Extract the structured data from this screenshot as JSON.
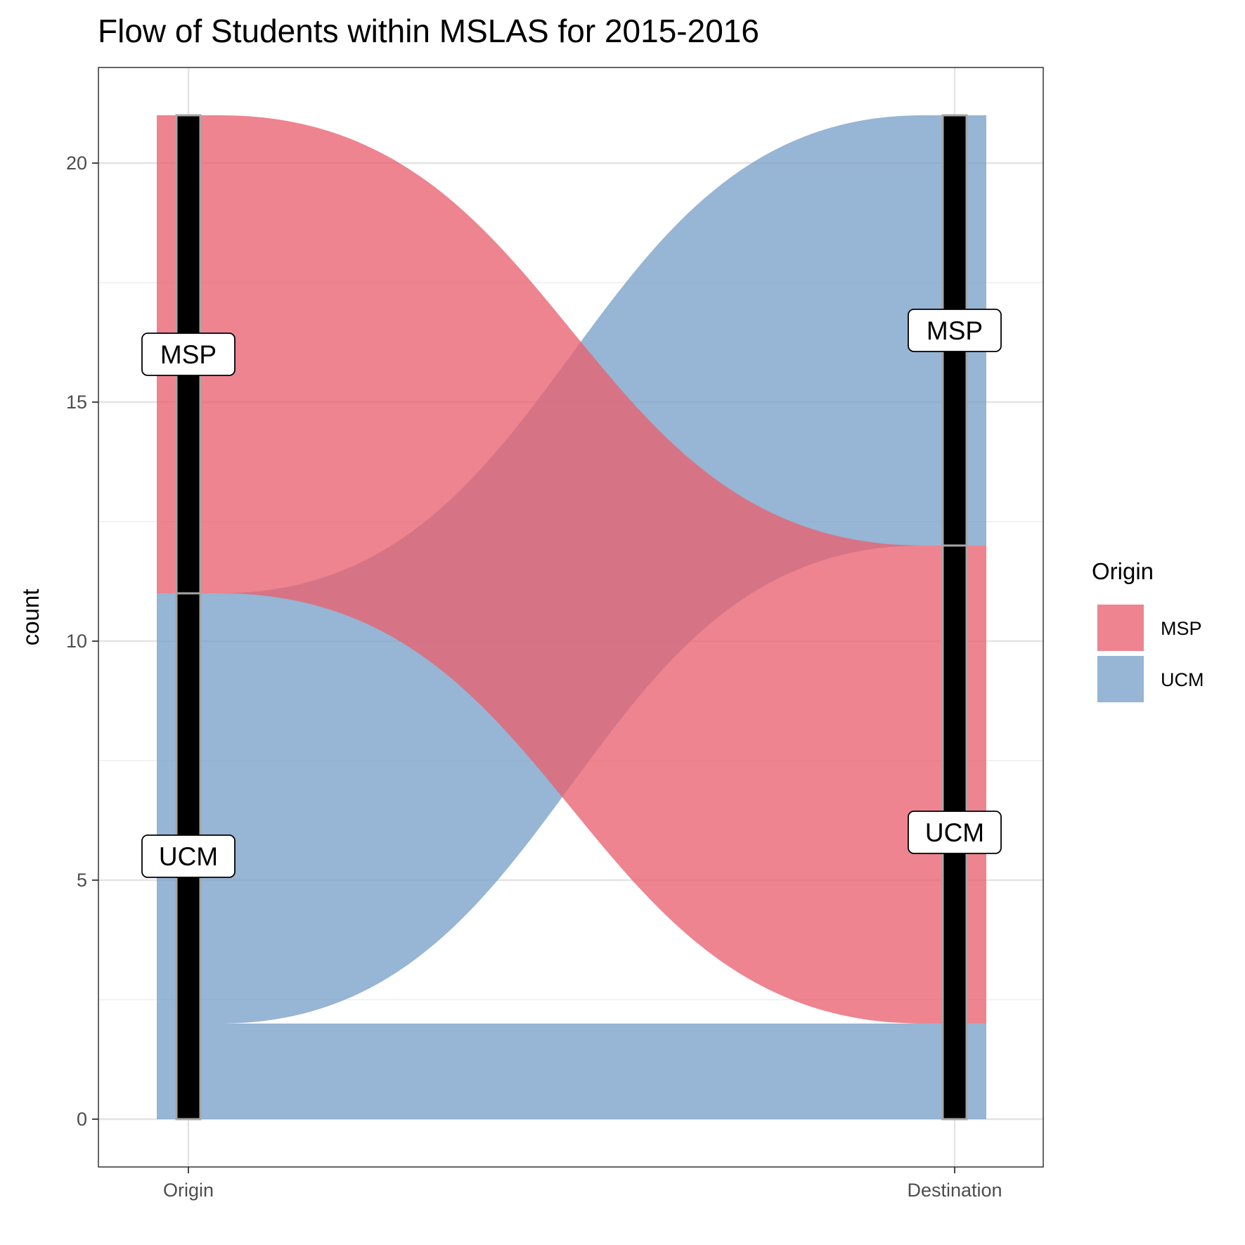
{
  "chart_data": {
    "type": "alluvial",
    "title": "Flow of Students within MSLAS for 2015-2016",
    "xlabel": "",
    "ylabel": "count",
    "axes": [
      "Origin",
      "Destination"
    ],
    "ylim": [
      -1,
      22
    ],
    "yticks": [
      0,
      5,
      10,
      15,
      20
    ],
    "grid": true,
    "legend": {
      "title": "Origin",
      "position": "right",
      "entries": [
        {
          "name": "MSP",
          "color": "#e8616f"
        },
        {
          "name": "UCM",
          "color": "#7aa0c8"
        }
      ]
    },
    "strata": {
      "Origin": [
        {
          "label": "UCM",
          "count": 11
        },
        {
          "label": "MSP",
          "count": 10
        }
      ],
      "Destination": [
        {
          "label": "UCM",
          "count": 12
        },
        {
          "label": "MSP",
          "count": 9
        }
      ]
    },
    "flows": [
      {
        "from": "UCM",
        "to": "UCM",
        "count": 2,
        "fill": "UCM"
      },
      {
        "from": "UCM",
        "to": "MSP",
        "count": 9,
        "fill": "UCM"
      },
      {
        "from": "MSP",
        "to": "UCM",
        "count": 10,
        "fill": "MSP"
      }
    ]
  }
}
